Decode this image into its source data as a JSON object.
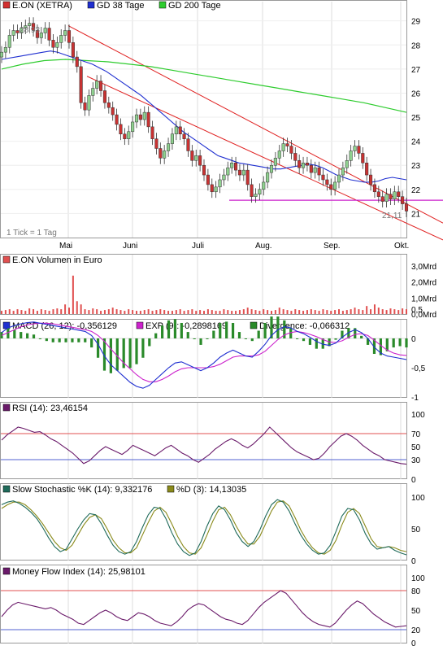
{
  "chart_data": [
    {
      "type": "candlestick",
      "legend": [
        {
          "name": "E.ON (XETRA)",
          "color": "#d23030"
        },
        {
          "name": "GD 38 Tage",
          "color": "#1f2fd0"
        },
        {
          "name": "GD 200 Tage",
          "color": "#2ecc2e"
        }
      ],
      "ylim": [
        20,
        29.8
      ],
      "yticks": [
        "29",
        "28",
        "27",
        "26",
        "25",
        "24",
        "23",
        "22",
        "21"
      ],
      "xticks": [
        "Mai",
        "Juni",
        "Juli",
        "Aug.",
        "Sep.",
        "Okt."
      ],
      "annotations": {
        "high": "28,93",
        "low": "21,11",
        "tick_note": "1 Tick = 1 Tag"
      },
      "support_level": 21.55,
      "channel": {
        "upper_start": 28.8,
        "upper_end": 21.5,
        "lower_start": 26.7,
        "lower_end": 20.5
      },
      "close": [
        27.7,
        27.9,
        28.4,
        28.6,
        28.5,
        28.7,
        28.8,
        28.9,
        28.6,
        28.3,
        28.5,
        28.7,
        28.2,
        27.9,
        28.1,
        28.4,
        28.6,
        28.1,
        27.5,
        27.1,
        25.6,
        25.3,
        25.9,
        26.2,
        26.5,
        26.1,
        25.6,
        25.4,
        25.1,
        24.7,
        24.3,
        24.1,
        24.4,
        24.8,
        25.1,
        24.9,
        25.2,
        24.6,
        24.1,
        23.7,
        23.3,
        23.6,
        23.9,
        24.3,
        24.6,
        24.3,
        24.1,
        23.6,
        23.2,
        23.4,
        23.0,
        22.6,
        22.2,
        21.9,
        22.1,
        22.4,
        22.6,
        22.9,
        23.1,
        22.8,
        22.6,
        22.8,
        22.2,
        21.7,
        21.8,
        22.0,
        22.3,
        22.7,
        23.0,
        23.3,
        23.6,
        23.9,
        23.8,
        23.5,
        23.2,
        22.9,
        23.1,
        23.0,
        22.7,
        22.9,
        22.6,
        22.4,
        22.2,
        22.0,
        22.3,
        22.6,
        22.9,
        23.2,
        23.6,
        23.8,
        23.5,
        23.1,
        22.6,
        22.2,
        21.9,
        21.7,
        21.5,
        21.8,
        21.6,
        21.9,
        21.7,
        21.4,
        21.1
      ],
      "ma38": [
        27.4,
        27.45,
        27.5,
        27.55,
        27.6,
        27.65,
        27.7,
        27.75,
        27.7,
        27.6,
        27.5,
        27.4,
        27.3,
        27.2,
        27.05,
        26.9,
        26.7,
        26.5,
        26.3,
        26.1,
        25.9,
        25.65,
        25.4,
        25.15,
        24.9,
        24.65,
        24.4,
        24.2,
        24.0,
        23.8,
        23.6,
        23.4,
        23.3,
        23.2,
        23.1,
        23.05,
        23.0,
        22.95,
        22.9,
        22.85,
        22.85,
        22.9,
        22.95,
        23.0,
        23.05,
        23.0,
        22.9,
        22.75,
        22.6,
        22.5,
        22.4,
        22.35,
        22.3,
        22.3,
        22.35,
        22.45,
        22.5,
        22.45,
        22.4
      ],
      "ma200": [
        27.0,
        27.2,
        27.35,
        27.4,
        27.35,
        27.3,
        27.2,
        27.1,
        26.95,
        26.8,
        26.65,
        26.5,
        26.35,
        26.2,
        26.05,
        25.9,
        25.75,
        25.6,
        25.4,
        25.2
      ]
    },
    {
      "type": "bar",
      "title": "E.ON Volumen in Euro",
      "yticks": [
        "3,0Mrd",
        "2,0Mrd",
        "1,0Mrd",
        "0,0Mrd"
      ],
      "ylim": [
        0,
        3.0
      ],
      "values": [
        0.2,
        0.25,
        0.3,
        0.2,
        0.3,
        0.25,
        0.2,
        0.35,
        0.3,
        0.2,
        0.3,
        0.25,
        0.2,
        0.3,
        0.35,
        0.3,
        0.6,
        0.4,
        2.4,
        0.8,
        0.6,
        0.3,
        0.25,
        0.35,
        0.3,
        0.2,
        0.25,
        0.3,
        0.4,
        0.3,
        0.25,
        0.2,
        0.3,
        0.25,
        0.2,
        0.2,
        0.25,
        0.3,
        0.2,
        0.25,
        0.3,
        0.25,
        0.2,
        0.2,
        0.25,
        0.3,
        0.2,
        0.25,
        0.3,
        0.2,
        0.25,
        0.2,
        0.3,
        0.25,
        0.2,
        0.2,
        0.3,
        0.25,
        0.2,
        0.2,
        0.25,
        0.3,
        0.4,
        0.3,
        0.25,
        0.2,
        0.3,
        0.25,
        0.2,
        0.25,
        0.4,
        0.3,
        0.25,
        0.2,
        0.3,
        0.25,
        0.2,
        0.25,
        0.3,
        0.25,
        0.2,
        0.3,
        0.25,
        0.2,
        0.25,
        0.3,
        0.2,
        0.25,
        0.3,
        0.4,
        0.3,
        0.25,
        0.5,
        0.3,
        0.6,
        0.4,
        0.3,
        0.25,
        0.35,
        0.3,
        0.25,
        0.35,
        0.3
      ],
      "color": "#e05050"
    },
    {
      "type": "line",
      "legend": [
        {
          "name": "MACD (26, 12): -0,356129",
          "color": "#1f2fd0"
        },
        {
          "name": "EXP (9): -0,2898169",
          "color": "#cc22cc"
        },
        {
          "name": "Divergence: -0,066312",
          "color": "#2a8a2a"
        }
      ],
      "yticks": [
        "0,5",
        "0",
        "-0,5",
        "-1"
      ],
      "ylim": [
        -1,
        0.5
      ],
      "macd": [
        0.1,
        0.18,
        0.22,
        0.25,
        0.27,
        0.28,
        0.26,
        0.24,
        0.22,
        0.2,
        0.18,
        0.16,
        0.14,
        0.12,
        0.05,
        -0.1,
        -0.3,
        -0.45,
        -0.55,
        -0.65,
        -0.75,
        -0.82,
        -0.85,
        -0.8,
        -0.7,
        -0.6,
        -0.5,
        -0.42,
        -0.4,
        -0.45,
        -0.5,
        -0.55,
        -0.5,
        -0.42,
        -0.32,
        -0.25,
        -0.2,
        -0.25,
        -0.3,
        -0.32,
        -0.22,
        -0.1,
        0.05,
        0.15,
        0.2,
        0.18,
        0.12,
        0.08,
        0.02,
        -0.05,
        -0.1,
        -0.12,
        -0.08,
        0.02,
        0.1,
        0.15,
        0.1,
        0.0,
        -0.15,
        -0.25,
        -0.3,
        -0.32,
        -0.34,
        -0.36
      ],
      "signal": [
        0.05,
        0.1,
        0.15,
        0.2,
        0.23,
        0.25,
        0.26,
        0.26,
        0.25,
        0.23,
        0.21,
        0.19,
        0.17,
        0.15,
        0.12,
        0.05,
        -0.05,
        -0.18,
        -0.3,
        -0.42,
        -0.52,
        -0.62,
        -0.7,
        -0.74,
        -0.74,
        -0.7,
        -0.64,
        -0.57,
        -0.52,
        -0.5,
        -0.5,
        -0.5,
        -0.5,
        -0.48,
        -0.44,
        -0.38,
        -0.32,
        -0.3,
        -0.3,
        -0.3,
        -0.28,
        -0.22,
        -0.12,
        -0.02,
        0.06,
        0.1,
        0.12,
        0.1,
        0.07,
        0.03,
        -0.02,
        -0.06,
        -0.07,
        -0.04,
        0.02,
        0.07,
        0.08,
        0.05,
        -0.03,
        -0.12,
        -0.2,
        -0.25,
        -0.28,
        -0.29
      ]
    },
    {
      "type": "line",
      "legend": [
        {
          "name": "RSI (14): 23,46154",
          "color": "#6a1a6a"
        }
      ],
      "yticks": [
        "100",
        "70",
        "50",
        "30",
        "0"
      ],
      "ylim": [
        0,
        100
      ],
      "levels": [
        70,
        30
      ],
      "values": [
        60,
        68,
        74,
        80,
        78,
        75,
        72,
        73,
        68,
        62,
        58,
        52,
        46,
        40,
        32,
        24,
        28,
        36,
        44,
        50,
        46,
        42,
        38,
        44,
        52,
        48,
        44,
        40,
        36,
        42,
        48,
        52,
        46,
        40,
        36,
        30,
        26,
        32,
        38,
        46,
        52,
        58,
        62,
        58,
        52,
        48,
        54,
        62,
        70,
        80,
        72,
        64,
        56,
        48,
        42,
        38,
        34,
        30,
        32,
        40,
        50,
        58,
        66,
        70,
        66,
        60,
        52,
        46,
        40,
        36,
        30,
        28,
        26,
        24,
        23
      ]
    },
    {
      "type": "line",
      "legend": [
        {
          "name": "Slow Stochastic %K (14): 9,332176",
          "color": "#1f6a5a"
        },
        {
          "name": "%D (3): 14,13035",
          "color": "#8a8a1a"
        }
      ],
      "yticks": [
        "100",
        "50",
        "0"
      ],
      "ylim": [
        0,
        100
      ],
      "k": [
        88,
        92,
        94,
        90,
        84,
        76,
        66,
        52,
        36,
        22,
        14,
        18,
        34,
        50,
        64,
        74,
        72,
        58,
        40,
        24,
        14,
        10,
        14,
        30,
        52,
        72,
        84,
        82,
        66,
        44,
        26,
        14,
        8,
        12,
        30,
        54,
        74,
        86,
        80,
        64,
        44,
        30,
        22,
        30,
        48,
        70,
        88,
        96,
        92,
        78,
        58,
        40,
        26,
        16,
        10,
        12,
        24,
        46,
        70,
        82,
        80,
        64,
        42,
        26,
        18,
        20,
        22,
        16,
        12,
        9
      ],
      "d": [
        82,
        88,
        92,
        92,
        88,
        80,
        70,
        58,
        44,
        30,
        20,
        16,
        24,
        40,
        56,
        68,
        72,
        66,
        50,
        32,
        20,
        12,
        12,
        20,
        40,
        60,
        78,
        84,
        76,
        58,
        38,
        22,
        12,
        10,
        20,
        40,
        62,
        80,
        84,
        72,
        54,
        38,
        26,
        26,
        38,
        58,
        78,
        92,
        94,
        86,
        68,
        48,
        32,
        20,
        12,
        10,
        16,
        32,
        56,
        76,
        82,
        74,
        54,
        34,
        22,
        20,
        22,
        20,
        16,
        14
      ]
    },
    {
      "type": "line",
      "legend": [
        {
          "name": "Money Flow Index (14): 25,98101",
          "color": "#6a1a6a"
        }
      ],
      "yticks": [
        "100",
        "80",
        "50",
        "20",
        "0"
      ],
      "ylim": [
        0,
        100
      ],
      "levels": [
        80,
        20
      ],
      "values": [
        40,
        50,
        58,
        62,
        60,
        58,
        56,
        54,
        52,
        54,
        50,
        44,
        40,
        36,
        30,
        28,
        34,
        40,
        46,
        50,
        46,
        40,
        36,
        34,
        40,
        46,
        44,
        40,
        34,
        30,
        28,
        26,
        32,
        40,
        50,
        56,
        60,
        58,
        52,
        46,
        40,
        36,
        34,
        30,
        28,
        34,
        44,
        54,
        62,
        68,
        74,
        80,
        76,
        66,
        56,
        46,
        38,
        32,
        28,
        26,
        24,
        30,
        40,
        50,
        58,
        64,
        60,
        52,
        44,
        38,
        32,
        28,
        24,
        25,
        26
      ]
    }
  ]
}
